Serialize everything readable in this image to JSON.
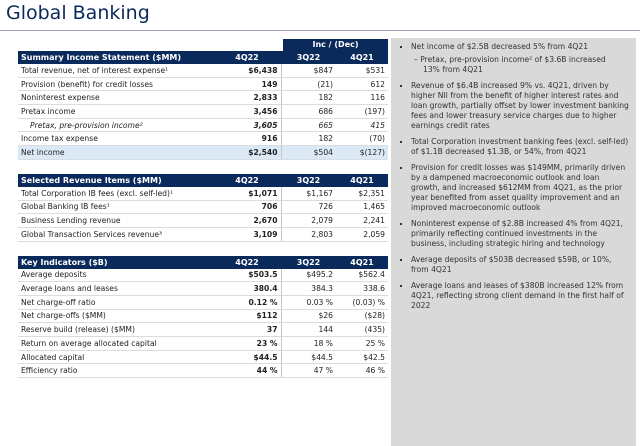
{
  "header": {
    "title": "Global Banking"
  },
  "change_header": "Inc / (Dec)",
  "tables": [
    {
      "columns": [
        "Summary Income Statement ($MM)",
        "4Q22",
        "3Q22",
        "4Q21"
      ],
      "rows": [
        {
          "label": "Total revenue, net of interest expense¹",
          "values": [
            "$6,438",
            "$847",
            "$531"
          ]
        },
        {
          "label": "Provision (benefit) for credit losses",
          "values": [
            "149",
            "(21)",
            "612"
          ]
        },
        {
          "label": "Noninterest expense",
          "values": [
            "2,833",
            "182",
            "116"
          ]
        },
        {
          "label": "Pretax income",
          "values": [
            "3,456",
            "686",
            "(197)"
          ]
        },
        {
          "label": "Pretax, pre-provision income²",
          "values": [
            "3,605",
            "665",
            "415"
          ]
        },
        {
          "label": "Income tax expense",
          "values": [
            "916",
            "182",
            "(70)"
          ]
        },
        {
          "label": "Net income",
          "values": [
            "$2,540",
            "$504",
            "$(127)"
          ]
        }
      ]
    },
    {
      "columns": [
        "Selected Revenue Items ($MM)",
        "4Q22",
        "3Q22",
        "4Q21"
      ],
      "rows": [
        {
          "label": "Total Corporation IB fees (excl. self-led)¹",
          "values": [
            "$1,071",
            "$1,167",
            "$2,351"
          ]
        },
        {
          "label": "Global Banking IB fees¹",
          "values": [
            "706",
            "726",
            "1,465"
          ]
        },
        {
          "label": "Business Lending revenue",
          "values": [
            "2,670",
            "2,079",
            "2,241"
          ]
        },
        {
          "label": "Global Transaction Services revenue³",
          "values": [
            "3,109",
            "2,803",
            "2,059"
          ]
        }
      ]
    },
    {
      "columns": [
        "Key Indicators ($B)",
        "4Q22",
        "3Q22",
        "4Q21"
      ],
      "rows": [
        {
          "label": "Average deposits",
          "values": [
            "$503.5",
            "$495.2",
            "$562.4"
          ]
        },
        {
          "label": "Average loans and leases",
          "values": [
            "380.4",
            "384.3",
            "338.6"
          ]
        },
        {
          "label": "Net charge-off ratio",
          "values": [
            "0.12 %",
            "0.03 %",
            "(0.03) %"
          ]
        },
        {
          "label": "Net charge-offs ($MM)",
          "values": [
            "$112",
            "$26",
            "($28)"
          ]
        },
        {
          "label": "Reserve build (release) ($MM)",
          "values": [
            "37",
            "144",
            "(435)"
          ]
        },
        {
          "label": "Return on average allocated capital",
          "values": [
            "23 %",
            "18 %",
            "25 %"
          ]
        },
        {
          "label": "Allocated capital",
          "values": [
            "$44.5",
            "$44.5",
            "$42.5"
          ]
        },
        {
          "label": "Efficiency ratio",
          "values": [
            "44 %",
            "47 %",
            "46 %"
          ]
        }
      ]
    }
  ],
  "bullets": [
    {
      "text": "Net income of $2.5B decreased 5% from 4Q21",
      "sub": [
        "Pretax, pre-provision income² of $3.6B increased 13% from 4Q21"
      ]
    },
    {
      "text": "Revenue of $6.4B increased 9% vs. 4Q21, driven by higher NII from the benefit of higher interest rates and loan growth, partially offset by lower investment banking fees and lower treasury service charges due to higher earnings credit rates"
    },
    {
      "text": "Total Corporation investment banking fees (excl. self-led) of $1.1B decreased $1.3B, or 54%, from 4Q21"
    },
    {
      "text": "Provision for credit losses was $149MM, primarily driven by a dampened macroeconomic outlook and loan growth, and increased $612MM from 4Q21, as the prior year benefited from asset quality improvement and an improved macroeconomic outlook"
    },
    {
      "text": "Noninterest expense of $2.8B increased 4% from 4Q21, primarily reflecting continued investments in the business, including strategic hiring and technology"
    },
    {
      "text": "Average deposits of $503B decreased $59B, or 10%, from 4Q21"
    },
    {
      "text": "Average loans and leases of $380B increased 12% from 4Q21, reflecting strong client demand in the first half of 2022"
    }
  ]
}
